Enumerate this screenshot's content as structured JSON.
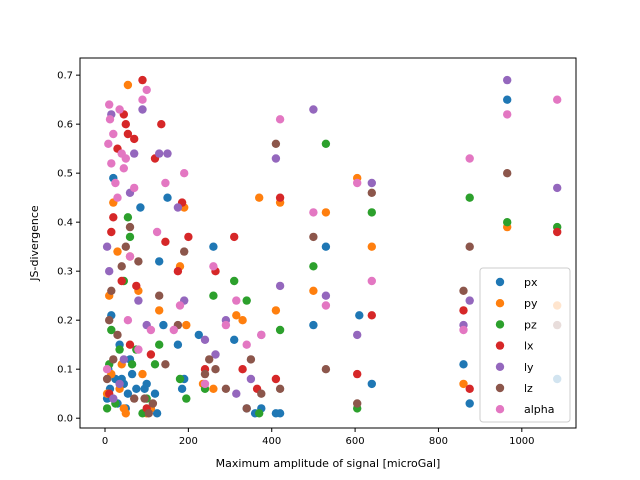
{
  "chart_data": {
    "type": "scatter",
    "xlabel": "Maximum amplitude of signal [microGal]",
    "ylabel": "JS-divergence",
    "xlim": [
      -60,
      1130
    ],
    "ylim": [
      -0.02,
      0.735
    ],
    "xticks": [
      0,
      200,
      400,
      600,
      800,
      1000
    ],
    "yticks": [
      0.0,
      0.1,
      0.2,
      0.3,
      0.4,
      0.5,
      0.6,
      0.7
    ],
    "grid": false,
    "legend_position": "lower-right",
    "series": [
      {
        "name": "px",
        "color": "#1f77b4",
        "points": [
          [
            5,
            0.04
          ],
          [
            8,
            0.1
          ],
          [
            12,
            0.06
          ],
          [
            15,
            0.21
          ],
          [
            20,
            0.49
          ],
          [
            25,
            0.08
          ],
          [
            30,
            0.03
          ],
          [
            35,
            0.15
          ],
          [
            40,
            0.08
          ],
          [
            45,
            0.07
          ],
          [
            50,
            0.02
          ],
          [
            55,
            0.05
          ],
          [
            60,
            0.12
          ],
          [
            65,
            0.09
          ],
          [
            75,
            0.06
          ],
          [
            85,
            0.43
          ],
          [
            95,
            0.06
          ],
          [
            100,
            0.07
          ],
          [
            110,
            0.02
          ],
          [
            120,
            0.05
          ],
          [
            125,
            0.01
          ],
          [
            130,
            0.32
          ],
          [
            140,
            0.19
          ],
          [
            150,
            0.45
          ],
          [
            175,
            0.15
          ],
          [
            185,
            0.06
          ],
          [
            190,
            0.08
          ],
          [
            225,
            0.17
          ],
          [
            260,
            0.35
          ],
          [
            310,
            0.16
          ],
          [
            340,
            0.02
          ],
          [
            360,
            0.01
          ],
          [
            375,
            0.02
          ],
          [
            410,
            0.01
          ],
          [
            420,
            0.01
          ],
          [
            500,
            0.19
          ],
          [
            530,
            0.35
          ],
          [
            610,
            0.21
          ],
          [
            640,
            0.07
          ],
          [
            860,
            0.11
          ],
          [
            875,
            0.03
          ],
          [
            965,
            0.65
          ],
          [
            1085,
            0.08
          ]
        ]
      },
      {
        "name": "py",
        "color": "#ff7f0e",
        "points": [
          [
            5,
            0.05
          ],
          [
            10,
            0.25
          ],
          [
            15,
            0.09
          ],
          [
            20,
            0.44
          ],
          [
            30,
            0.34
          ],
          [
            35,
            0.06
          ],
          [
            40,
            0.11
          ],
          [
            45,
            0.02
          ],
          [
            50,
            0.01
          ],
          [
            55,
            0.68
          ],
          [
            60,
            0.33
          ],
          [
            80,
            0.26
          ],
          [
            90,
            0.09
          ],
          [
            100,
            0.01
          ],
          [
            110,
            0.02
          ],
          [
            130,
            0.22
          ],
          [
            180,
            0.31
          ],
          [
            190,
            0.43
          ],
          [
            195,
            0.19
          ],
          [
            235,
            0.07
          ],
          [
            260,
            0.06
          ],
          [
            315,
            0.21
          ],
          [
            330,
            0.2
          ],
          [
            370,
            0.45
          ],
          [
            410,
            0.22
          ],
          [
            420,
            0.44
          ],
          [
            500,
            0.26
          ],
          [
            530,
            0.42
          ],
          [
            605,
            0.49
          ],
          [
            640,
            0.35
          ],
          [
            860,
            0.07
          ],
          [
            965,
            0.39
          ],
          [
            1085,
            0.23
          ]
        ]
      },
      {
        "name": "pz",
        "color": "#2ca02c",
        "points": [
          [
            5,
            0.02
          ],
          [
            10,
            0.11
          ],
          [
            15,
            0.18
          ],
          [
            25,
            0.03
          ],
          [
            35,
            0.14
          ],
          [
            45,
            0.28
          ],
          [
            55,
            0.41
          ],
          [
            60,
            0.37
          ],
          [
            65,
            0.11
          ],
          [
            75,
            0.14
          ],
          [
            90,
            0.01
          ],
          [
            100,
            0.04
          ],
          [
            120,
            0.11
          ],
          [
            130,
            0.15
          ],
          [
            180,
            0.08
          ],
          [
            195,
            0.04
          ],
          [
            240,
            0.06
          ],
          [
            260,
            0.25
          ],
          [
            310,
            0.28
          ],
          [
            340,
            0.24
          ],
          [
            370,
            0.01
          ],
          [
            420,
            0.18
          ],
          [
            500,
            0.31
          ],
          [
            530,
            0.56
          ],
          [
            605,
            0.02
          ],
          [
            640,
            0.42
          ],
          [
            875,
            0.45
          ],
          [
            965,
            0.4
          ],
          [
            1085,
            0.39
          ]
        ]
      },
      {
        "name": "lx",
        "color": "#d62728",
        "points": [
          [
            10,
            0.05
          ],
          [
            15,
            0.38
          ],
          [
            20,
            0.41
          ],
          [
            30,
            0.55
          ],
          [
            40,
            0.28
          ],
          [
            45,
            0.62
          ],
          [
            50,
            0.6
          ],
          [
            55,
            0.58
          ],
          [
            60,
            0.15
          ],
          [
            70,
            0.57
          ],
          [
            75,
            0.27
          ],
          [
            90,
            0.69
          ],
          [
            100,
            0.02
          ],
          [
            110,
            0.13
          ],
          [
            120,
            0.53
          ],
          [
            135,
            0.6
          ],
          [
            145,
            0.36
          ],
          [
            175,
            0.3
          ],
          [
            185,
            0.44
          ],
          [
            200,
            0.37
          ],
          [
            240,
            0.1
          ],
          [
            265,
            0.3
          ],
          [
            310,
            0.37
          ],
          [
            330,
            0.1
          ],
          [
            365,
            0.06
          ],
          [
            410,
            0.08
          ],
          [
            420,
            0.45
          ],
          [
            605,
            0.09
          ],
          [
            640,
            0.21
          ],
          [
            860,
            0.22
          ],
          [
            875,
            0.06
          ],
          [
            1085,
            0.38
          ]
        ]
      },
      {
        "name": "ly",
        "color": "#9467bd",
        "points": [
          [
            5,
            0.35
          ],
          [
            10,
            0.3
          ],
          [
            15,
            0.62
          ],
          [
            20,
            0.04
          ],
          [
            35,
            0.07
          ],
          [
            45,
            0.12
          ],
          [
            60,
            0.46
          ],
          [
            70,
            0.54
          ],
          [
            80,
            0.24
          ],
          [
            90,
            0.63
          ],
          [
            100,
            0.19
          ],
          [
            130,
            0.54
          ],
          [
            150,
            0.54
          ],
          [
            175,
            0.43
          ],
          [
            190,
            0.24
          ],
          [
            240,
            0.16
          ],
          [
            265,
            0.13
          ],
          [
            290,
            0.2
          ],
          [
            315,
            0.05
          ],
          [
            350,
            0.08
          ],
          [
            375,
            0.17
          ],
          [
            410,
            0.53
          ],
          [
            420,
            0.27
          ],
          [
            500,
            0.63
          ],
          [
            530,
            0.25
          ],
          [
            605,
            0.17
          ],
          [
            640,
            0.48
          ],
          [
            860,
            0.19
          ],
          [
            875,
            0.24
          ],
          [
            965,
            0.69
          ],
          [
            1085,
            0.47
          ]
        ]
      },
      {
        "name": "lz",
        "color": "#8c564b",
        "points": [
          [
            5,
            0.08
          ],
          [
            10,
            0.2
          ],
          [
            15,
            0.26
          ],
          [
            20,
            0.12
          ],
          [
            30,
            0.17
          ],
          [
            40,
            0.31
          ],
          [
            50,
            0.35
          ],
          [
            60,
            0.39
          ],
          [
            70,
            0.04
          ],
          [
            80,
            0.32
          ],
          [
            95,
            0.04
          ],
          [
            105,
            0.01
          ],
          [
            115,
            0.03
          ],
          [
            130,
            0.25
          ],
          [
            145,
            0.11
          ],
          [
            175,
            0.19
          ],
          [
            190,
            0.34
          ],
          [
            240,
            0.09
          ],
          [
            250,
            0.12
          ],
          [
            265,
            0.1
          ],
          [
            290,
            0.06
          ],
          [
            340,
            0.02
          ],
          [
            350,
            0.12
          ],
          [
            375,
            0.05
          ],
          [
            410,
            0.56
          ],
          [
            420,
            0.06
          ],
          [
            500,
            0.37
          ],
          [
            530,
            0.1
          ],
          [
            605,
            0.03
          ],
          [
            640,
            0.46
          ],
          [
            860,
            0.26
          ],
          [
            875,
            0.35
          ],
          [
            965,
            0.5
          ],
          [
            1085,
            0.19
          ]
        ]
      },
      {
        "name": "alpha",
        "color": "#e377c2",
        "points": [
          [
            5,
            0.1
          ],
          [
            8,
            0.56
          ],
          [
            10,
            0.64
          ],
          [
            12,
            0.61
          ],
          [
            15,
            0.52
          ],
          [
            20,
            0.58
          ],
          [
            25,
            0.48
          ],
          [
            30,
            0.45
          ],
          [
            35,
            0.63
          ],
          [
            40,
            0.54
          ],
          [
            45,
            0.51
          ],
          [
            50,
            0.53
          ],
          [
            55,
            0.2
          ],
          [
            60,
            0.33
          ],
          [
            70,
            0.47
          ],
          [
            80,
            0.14
          ],
          [
            90,
            0.65
          ],
          [
            100,
            0.67
          ],
          [
            110,
            0.18
          ],
          [
            125,
            0.38
          ],
          [
            145,
            0.48
          ],
          [
            165,
            0.18
          ],
          [
            180,
            0.23
          ],
          [
            190,
            0.5
          ],
          [
            240,
            0.07
          ],
          [
            260,
            0.31
          ],
          [
            290,
            0.19
          ],
          [
            315,
            0.24
          ],
          [
            340,
            0.15
          ],
          [
            375,
            0.17
          ],
          [
            420,
            0.61
          ],
          [
            500,
            0.42
          ],
          [
            530,
            0.23
          ],
          [
            605,
            0.48
          ],
          [
            640,
            0.28
          ],
          [
            860,
            0.18
          ],
          [
            875,
            0.53
          ],
          [
            965,
            0.62
          ],
          [
            1085,
            0.65
          ]
        ]
      }
    ]
  }
}
